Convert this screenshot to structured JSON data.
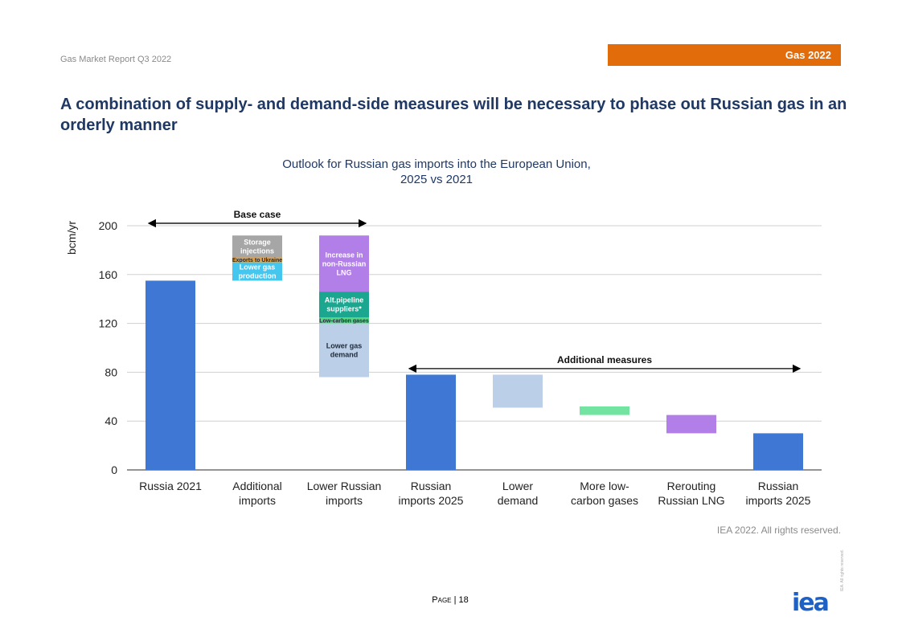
{
  "header": {
    "report": "Gas Market Report Q3 2022",
    "tag": "Gas 2022"
  },
  "title": "A combination of supply- and demand-side measures will be necessary to phase out Russian gas in an orderly manner",
  "chart_title": {
    "line1": "Outlook for Russian gas imports into the European Union,",
    "line2": "2025 vs 2021"
  },
  "colors": {
    "blue": "#3e78d4",
    "light_blue": "#bccfe8",
    "grey": "#a6a6a6",
    "orange": "#e8a03a",
    "cyan": "#45c6ee",
    "purple": "#b27fe8",
    "teal": "#1ba68f",
    "green": "#57d585",
    "mint": "#72e3a0",
    "grid": "#d0d0d0"
  },
  "chart_data": {
    "type": "bar",
    "subtype": "waterfall",
    "title": "Outlook for Russian gas imports into the European Union, 2025 vs 2021",
    "ylabel": "bcm/yr",
    "ylim": [
      0,
      200
    ],
    "yticks": [
      0,
      40,
      80,
      120,
      160,
      200
    ],
    "categories": [
      "Russia 2021",
      "Additional imports",
      "Lower Russian imports",
      "Russian imports 2025",
      "Lower demand",
      "More low-carbon gases",
      "Rerouting Russian LNG",
      "Russian imports 2025"
    ],
    "category_lines": [
      [
        "Russia 2021"
      ],
      [
        "Additional",
        "imports"
      ],
      [
        "Lower Russian",
        "imports"
      ],
      [
        "Russian",
        "imports 2025"
      ],
      [
        "Lower",
        "demand"
      ],
      [
        "More low-",
        "carbon gases"
      ],
      [
        "Rerouting",
        "Russian LNG"
      ],
      [
        "Russian",
        "imports 2025"
      ]
    ],
    "segments": [
      {
        "cat": 0,
        "from": 0,
        "to": 155,
        "color": "blue",
        "label": []
      },
      {
        "cat": 1,
        "from": 174,
        "to": 192,
        "color": "grey",
        "label": [
          "Storage",
          "injections"
        ]
      },
      {
        "cat": 1,
        "from": 170,
        "to": 174,
        "color": "orange",
        "label": [
          "Exports to Ukraine"
        ],
        "small": true
      },
      {
        "cat": 1,
        "from": 155,
        "to": 170,
        "color": "cyan",
        "label": [
          "Lower gas",
          "production"
        ]
      },
      {
        "cat": 2,
        "from": 146,
        "to": 192,
        "color": "purple",
        "label": [
          "Increase in",
          "non-Russian",
          "LNG"
        ]
      },
      {
        "cat": 2,
        "from": 125,
        "to": 146,
        "color": "teal",
        "label": [
          "Alt.pipeline",
          "suppliers*"
        ]
      },
      {
        "cat": 2,
        "from": 120,
        "to": 125,
        "color": "green",
        "label": [
          "Low-carbon gases"
        ],
        "small": true
      },
      {
        "cat": 2,
        "from": 76,
        "to": 120,
        "color": "light_blue",
        "label": [
          "Lower gas",
          "demand"
        ],
        "dark": true
      },
      {
        "cat": 3,
        "from": 0,
        "to": 78,
        "color": "blue",
        "label": []
      },
      {
        "cat": 4,
        "from": 51,
        "to": 78,
        "color": "light_blue",
        "label": []
      },
      {
        "cat": 5,
        "from": 45,
        "to": 52,
        "color": "mint",
        "label": []
      },
      {
        "cat": 6,
        "from": 30,
        "to": 45,
        "color": "purple",
        "label": []
      },
      {
        "cat": 7,
        "from": 0,
        "to": 30,
        "color": "blue",
        "label": []
      }
    ],
    "annotations": [
      {
        "text": "Base case",
        "from_cat": 0,
        "to_cat": 2,
        "value": 202
      },
      {
        "text": "Additional measures",
        "from_cat": 3,
        "to_cat": 7,
        "value": 83
      }
    ]
  },
  "footer": {
    "copyright": "IEA 2022. All rights reserved.",
    "page_word": "Page",
    "page_number": "| 18",
    "logo": "iea",
    "side_note": "IEA. All rights reserved."
  }
}
